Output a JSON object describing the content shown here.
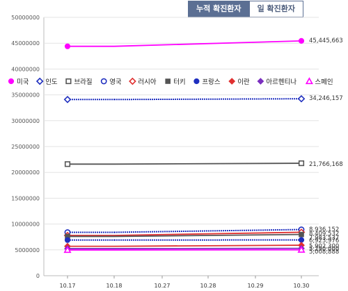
{
  "tabs": {
    "cumulative_label": "누적 확진환자",
    "daily_label": "일 확진환자"
  },
  "chart_data": {
    "type": "line",
    "title": "",
    "xlabel": "",
    "ylabel": "",
    "ylim": [
      0,
      50000000
    ],
    "yticks": [
      0,
      5000000,
      10000000,
      15000000,
      20000000,
      25000000,
      30000000,
      35000000,
      40000000,
      45000000,
      50000000
    ],
    "ytick_labels": [
      "0",
      "5000000",
      "10000000",
      "15000000",
      "20000000",
      "25000000",
      "30000000",
      "35000000",
      "40000000",
      "45000000",
      "50000000"
    ],
    "categories": [
      "10.17",
      "10.18",
      "10.27",
      "10.28",
      "10.29",
      "10.30"
    ],
    "grid": true,
    "legend_position": "middle",
    "series": [
      {
        "name": "미국",
        "color": "#ff00ff",
        "marker": "filled-circle",
        "dashed": false,
        "values": [
          44400000,
          44400000,
          null,
          null,
          null,
          45445663
        ],
        "end_label": "45,445,663"
      },
      {
        "name": "인도",
        "color": "#1f2fbf",
        "marker": "open-diamond",
        "dashed": true,
        "values": [
          34100000,
          34100000,
          null,
          null,
          null,
          34246157
        ],
        "end_label": "34,246,157"
      },
      {
        "name": "브라질",
        "color": "#555555",
        "marker": "open-square",
        "dashed": false,
        "values": [
          21600000,
          21600000,
          null,
          null,
          null,
          21766168
        ],
        "end_label": "21,766,168"
      },
      {
        "name": "영국",
        "color": "#1f2fbf",
        "marker": "open-circle",
        "dashed": true,
        "values": [
          8400000,
          8400000,
          null,
          null,
          null,
          8936152
        ],
        "end_label": "8,936,152"
      },
      {
        "name": "러시아",
        "color": "#e03030",
        "marker": "open-diamond",
        "dashed": false,
        "values": [
          7800000,
          7800000,
          null,
          null,
          null,
          8409532
        ],
        "end_label": "8,409,532"
      },
      {
        "name": "터키",
        "color": "#555555",
        "marker": "filled-square",
        "dashed": false,
        "values": [
          7600000,
          7600000,
          null,
          null,
          null,
          7983537
        ],
        "end_label": "7,983,537"
      },
      {
        "name": "프랑스",
        "color": "#1f2fbf",
        "marker": "filled-circle",
        "dashed": true,
        "values": [
          6900000,
          6900000,
          null,
          null,
          null,
          6923976
        ],
        "end_label": "6,923,976"
      },
      {
        "name": "이란",
        "color": "#e03030",
        "marker": "filled-diamond",
        "dashed": false,
        "values": [
          5700000,
          5700000,
          null,
          null,
          null,
          5902300
        ],
        "end_label": "5,902,300"
      },
      {
        "name": "아르헨티나",
        "color": "#7b2fbf",
        "marker": "filled-diamond",
        "dashed": false,
        "values": [
          5250000,
          5250000,
          null,
          null,
          null,
          5290000
        ],
        "end_label": "5,290,000"
      },
      {
        "name": "스페인",
        "color": "#ff00ff",
        "marker": "open-triangle",
        "dashed": false,
        "values": [
          4980000,
          4980000,
          null,
          null,
          null,
          5008888
        ],
        "end_label": "5,008,888"
      }
    ]
  }
}
